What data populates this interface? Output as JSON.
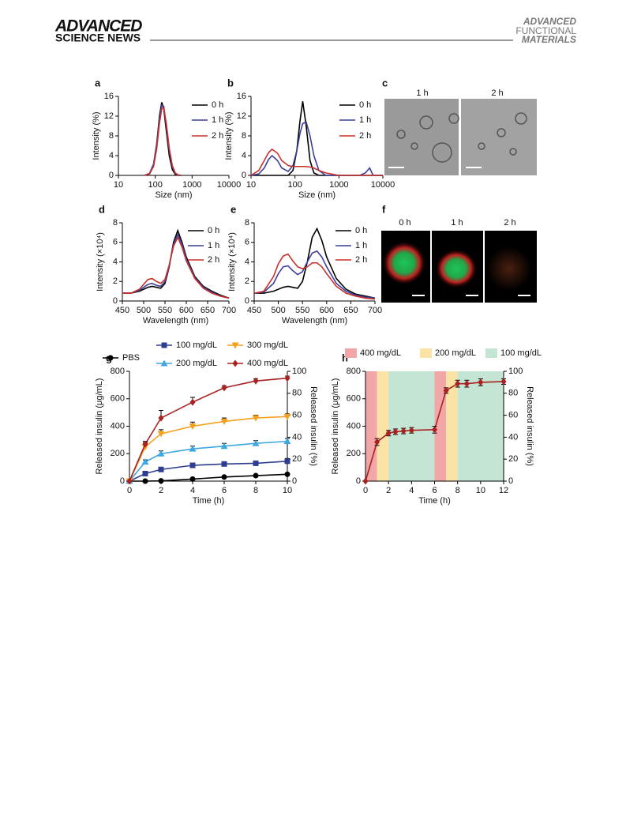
{
  "header": {
    "brand_top": "ADVANCED",
    "brand_bottom": "SCIENCE NEWS",
    "journal": [
      "ADVANCED",
      "FUNCTIONAL",
      "MATERIALS"
    ]
  },
  "images": [
    {
      "panel": "c",
      "captions": [
        "1 h",
        "2 h"
      ]
    },
    {
      "panel": "f",
      "captions": [
        "0 h",
        "1 h",
        "2 h"
      ]
    }
  ],
  "chart_data": [
    {
      "type": "line",
      "panel": "a",
      "xlabel": "Size (nm)",
      "ylabel": "Intensity (%)",
      "xscale": "log",
      "xlim": [
        10,
        10000
      ],
      "xticks": [
        10,
        100,
        1000,
        10000
      ],
      "ylim": [
        0,
        16
      ],
      "yticks": [
        0,
        4,
        8,
        12,
        16
      ],
      "x": [
        50,
        70,
        90,
        110,
        130,
        150,
        170,
        200,
        240,
        290,
        350,
        420,
        500
      ],
      "series": [
        {
          "name": "0 h",
          "color": "#000000",
          "values": [
            0,
            0.3,
            2,
            6.5,
            12,
            14.8,
            13.5,
            9,
            4,
            1.2,
            0.2,
            0,
            0
          ]
        },
        {
          "name": "1 h",
          "color": "#3b3f9c",
          "values": [
            0,
            0.4,
            2.3,
            6.5,
            11.5,
            14.2,
            14,
            10,
            5,
            1.8,
            0.4,
            0,
            0
          ]
        },
        {
          "name": "2 h",
          "color": "#c9302c",
          "values": [
            0,
            0.3,
            1.8,
            5.5,
            10.5,
            13.5,
            13.7,
            10.5,
            5.5,
            2,
            0.5,
            0.1,
            0
          ]
        }
      ]
    },
    {
      "type": "line",
      "panel": "b",
      "xlabel": "Size (nm)",
      "ylabel": "Intensity (%)",
      "xscale": "log",
      "xlim": [
        10,
        10000
      ],
      "xticks": [
        10,
        100,
        1000,
        10000
      ],
      "ylim": [
        0,
        16
      ],
      "yticks": [
        0,
        4,
        8,
        12,
        16
      ],
      "x": [
        10,
        15,
        20,
        25,
        30,
        40,
        50,
        70,
        90,
        110,
        130,
        150,
        180,
        220,
        270,
        350,
        500,
        1000,
        2000,
        3000,
        4000,
        5000,
        6000,
        8000,
        10000
      ],
      "series": [
        {
          "name": "0 h",
          "color": "#000000",
          "values": [
            0,
            0,
            0,
            0,
            0,
            0,
            0,
            0,
            1,
            5,
            11,
            15,
            10,
            3,
            0.5,
            0,
            0,
            0,
            0,
            0,
            0,
            0,
            0,
            0,
            0
          ]
        },
        {
          "name": "1 h",
          "color": "#3b3f9c",
          "values": [
            0,
            0.3,
            1.5,
            3.2,
            4,
            3,
            1.5,
            0.8,
            2,
            5,
            8.5,
            10.5,
            10.8,
            8,
            4,
            1,
            0,
            0,
            0,
            0,
            0.5,
            1.5,
            0,
            0,
            0
          ]
        },
        {
          "name": "2 h",
          "color": "#c9302c",
          "values": [
            0,
            1,
            3,
            4.6,
            5.3,
            4.5,
            3,
            2,
            1.8,
            1.8,
            1.8,
            1.8,
            1.8,
            1.7,
            1.5,
            1,
            0.5,
            0,
            0,
            0,
            0,
            0,
            0,
            0,
            0
          ]
        }
      ]
    },
    {
      "type": "line",
      "panel": "d",
      "xlabel": "Wavelength (nm)",
      "ylabel": "Intensity (×10⁴)",
      "xlim": [
        450,
        700
      ],
      "xticks": [
        450,
        500,
        550,
        600,
        650,
        700
      ],
      "ylim": [
        0,
        8
      ],
      "yticks": [
        0,
        2,
        4,
        6,
        8
      ],
      "x": [
        450,
        470,
        490,
        500,
        510,
        520,
        530,
        540,
        550,
        560,
        570,
        580,
        590,
        600,
        620,
        640,
        660,
        680,
        700
      ],
      "series": [
        {
          "name": "0 h",
          "color": "#000000",
          "values": [
            0.8,
            0.8,
            1.0,
            1.2,
            1.4,
            1.5,
            1.4,
            1.3,
            1.8,
            3.5,
            6,
            7.2,
            6,
            4.5,
            2.5,
            1.5,
            1,
            0.6,
            0.3
          ]
        },
        {
          "name": "1 h",
          "color": "#3b3f9c",
          "values": [
            0.8,
            0.8,
            1.1,
            1.4,
            1.7,
            1.8,
            1.6,
            1.5,
            2,
            3.6,
            5.8,
            6.8,
            5.8,
            4.3,
            2.4,
            1.4,
            0.9,
            0.5,
            0.3
          ]
        },
        {
          "name": "2 h",
          "color": "#c9302c",
          "values": [
            0.8,
            0.8,
            1.2,
            1.7,
            2.2,
            2.3,
            2,
            1.8,
            2.2,
            3.7,
            5.6,
            6.5,
            5.5,
            4.1,
            2.3,
            1.3,
            0.8,
            0.5,
            0.3
          ]
        }
      ]
    },
    {
      "type": "line",
      "panel": "e",
      "xlabel": "Wavelength (nm)",
      "ylabel": "Intensity (×10⁴)",
      "xlim": [
        450,
        700
      ],
      "xticks": [
        450,
        500,
        550,
        600,
        650,
        700
      ],
      "ylim": [
        0,
        8
      ],
      "yticks": [
        0,
        2,
        4,
        6,
        8
      ],
      "x": [
        450,
        470,
        490,
        500,
        510,
        520,
        530,
        540,
        550,
        560,
        570,
        580,
        590,
        600,
        620,
        640,
        660,
        680,
        700
      ],
      "series": [
        {
          "name": "0 h",
          "color": "#000000",
          "values": [
            0.8,
            0.8,
            1.0,
            1.2,
            1.4,
            1.5,
            1.4,
            1.3,
            2,
            4,
            6.5,
            7.4,
            6.2,
            4.5,
            2.3,
            1.2,
            0.7,
            0.5,
            0.3
          ]
        },
        {
          "name": "1 h",
          "color": "#3b3f9c",
          "values": [
            0.8,
            0.9,
            1.8,
            2.8,
            3.5,
            3.6,
            3.1,
            2.7,
            3,
            4,
            4.9,
            5.1,
            4.5,
            3.5,
            1.8,
            1,
            0.6,
            0.4,
            0.3
          ]
        },
        {
          "name": "2 h",
          "color": "#c9302c",
          "values": [
            0.8,
            1.0,
            2.5,
            3.8,
            4.6,
            4.8,
            4.1,
            3.5,
            3.3,
            3.5,
            3.9,
            3.9,
            3.5,
            2.8,
            1.5,
            0.8,
            0.5,
            0.3,
            0.2
          ]
        }
      ]
    },
    {
      "type": "line",
      "panel": "g",
      "xlabel": "Time (h)",
      "ylabel": "Released insulin (μg/mL)",
      "y2label": "Released insulin (%)",
      "xlim": [
        0,
        10
      ],
      "xticks": [
        0,
        2,
        4,
        6,
        8,
        10
      ],
      "ylim": [
        0,
        800
      ],
      "yticks": [
        0,
        200,
        400,
        600,
        800
      ],
      "y2lim": [
        0,
        100
      ],
      "y2ticks": [
        0,
        20,
        40,
        60,
        80,
        100
      ],
      "error_bars": "upper",
      "x": [
        0,
        1,
        2,
        4,
        6,
        8,
        10
      ],
      "series": [
        {
          "name": "PBS",
          "color": "#000000",
          "marker": "circle",
          "values": [
            0,
            0,
            2,
            15,
            30,
            40,
            50
          ],
          "errors": [
            0,
            3,
            3,
            5,
            5,
            5,
            5
          ]
        },
        {
          "name": "100 mg/dL",
          "color": "#2e3d8f",
          "marker": "square",
          "values": [
            0,
            55,
            85,
            115,
            125,
            130,
            145
          ],
          "errors": [
            0,
            10,
            12,
            15,
            15,
            15,
            20
          ]
        },
        {
          "name": "200 mg/dL",
          "color": "#3fa7e0",
          "marker": "triangle-up",
          "values": [
            0,
            140,
            200,
            235,
            255,
            275,
            290
          ],
          "errors": [
            0,
            15,
            20,
            20,
            20,
            20,
            20
          ]
        },
        {
          "name": "300 mg/dL",
          "color": "#f5a01e",
          "marker": "triangle-down",
          "values": [
            0,
            250,
            345,
            400,
            435,
            460,
            470
          ],
          "errors": [
            0,
            30,
            30,
            30,
            25,
            20,
            20
          ]
        },
        {
          "name": "400 mg/dL",
          "color": "#a82222",
          "marker": "diamond",
          "values": [
            0,
            270,
            460,
            575,
            680,
            730,
            750
          ],
          "errors": [
            0,
            20,
            55,
            35,
            15,
            15,
            15
          ]
        }
      ]
    },
    {
      "type": "line",
      "panel": "h",
      "xlabel": "Time (h)",
      "ylabel": "Released insulin (μg/mL)",
      "y2label": "Released insulin (%)",
      "xlim": [
        0,
        12
      ],
      "xticks": [
        0,
        2,
        4,
        6,
        8,
        10,
        12
      ],
      "ylim": [
        0,
        800
      ],
      "yticks": [
        0,
        200,
        400,
        600,
        800
      ],
      "y2lim": [
        0,
        100
      ],
      "y2ticks": [
        0,
        20,
        40,
        60,
        80,
        100
      ],
      "error_bars": "both",
      "bands": [
        {
          "name": "400 mg/dL",
          "color": "#f2a6a8",
          "intervals": [
            [
              0,
              1
            ],
            [
              6,
              7
            ]
          ]
        },
        {
          "name": "200 mg/dL",
          "color": "#fbe3a6",
          "intervals": [
            [
              1,
              2
            ],
            [
              7,
              8
            ]
          ]
        },
        {
          "name": "100 mg/dL",
          "color": "#c5e5d4",
          "intervals": [
            [
              2,
              6
            ],
            [
              8,
              12
            ]
          ]
        }
      ],
      "x": [
        0,
        1,
        2,
        2.6,
        3.3,
        4,
        6,
        7,
        8,
        8.8,
        10,
        12
      ],
      "series": [
        {
          "color": "#a82222",
          "marker": "diamond",
          "values": [
            0,
            285,
            350,
            360,
            365,
            370,
            375,
            660,
            710,
            710,
            720,
            725
          ],
          "errors": [
            0,
            25,
            20,
            20,
            20,
            20,
            25,
            20,
            25,
            25,
            25,
            20
          ]
        }
      ]
    }
  ]
}
